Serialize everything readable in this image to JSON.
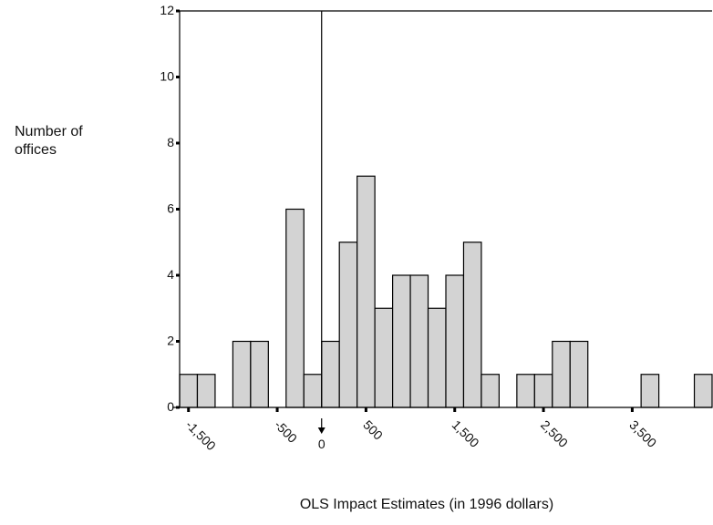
{
  "chart_data": {
    "type": "histogram",
    "x_label": "OLS Impact Estimates (in 1996 dollars)",
    "y_label": "Number of offices",
    "bins": [
      -1600,
      -1400,
      -1200,
      -1000,
      -800,
      -600,
      -400,
      -200,
      0,
      200,
      400,
      600,
      800,
      1000,
      1200,
      1400,
      1600,
      1800,
      2000,
      2200,
      2400,
      2600,
      2800,
      3000,
      3200,
      3400,
      3600,
      3800,
      4000,
      4200,
      4400
    ],
    "values": [
      1,
      1,
      0,
      2,
      2,
      0,
      6,
      1,
      2,
      5,
      7,
      3,
      4,
      4,
      3,
      4,
      5,
      1,
      0,
      1,
      1,
      2,
      2,
      0,
      0,
      0,
      1,
      0,
      0,
      1
    ],
    "color": "#d3d3d3",
    "xlim": [
      -1600,
      4400
    ],
    "ylim": [
      0,
      12
    ],
    "xticks": [
      {
        "value": -1500,
        "label": "-1,500"
      },
      {
        "value": -500,
        "label": "-500"
      },
      500,
      {
        "value": 1500,
        "label": "1,500"
      },
      {
        "value": 2500,
        "label": "2,500"
      },
      {
        "value": 3500,
        "label": "3,500"
      }
    ],
    "yticks": [
      0,
      2,
      4,
      6,
      8,
      10,
      12
    ],
    "reference_line": 0
  }
}
